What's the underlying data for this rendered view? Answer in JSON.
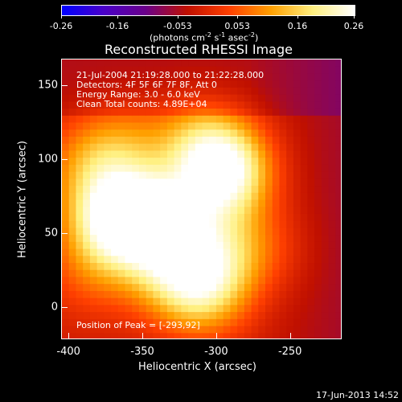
{
  "colorbar": {
    "tick_labels": [
      "-0.26",
      "-0.16",
      "-0.053",
      "0.053",
      "0.16",
      "0.26"
    ],
    "tick_values": [
      -0.26,
      -0.16,
      -0.053,
      0.053,
      0.16,
      0.26
    ],
    "units_text": "(photons cm",
    "units_sup1": "-2",
    "units_mid": " s",
    "units_sup2": "-1",
    "units_end": " asec",
    "units_sup3": "-2",
    "units_close": ")"
  },
  "plot": {
    "title": "Reconstructed RHESSI Image",
    "xlabel": "Heliocentric X (arcsec)",
    "ylabel": "Heliocentric Y (arcsec)",
    "xticks": [
      "-400",
      "-350",
      "-300",
      "-250"
    ],
    "yticks": [
      "0",
      "50",
      "100",
      "150"
    ],
    "annotations": {
      "time_range": "21-Jul-2004 21:19:28.000 to 21:22:28.000",
      "detectors": "Detectors: 4F 5F 6F 7F 8F, Att 0",
      "energy": "Energy Range: 3.0 - 6.0 keV",
      "clean": "Clean     Total counts: 4.89E+04",
      "peak": "Position of Peak = [-293,92]"
    }
  },
  "footer": {
    "date": "17-Jun-2013 14:52"
  },
  "chart_data": {
    "type": "heatmap",
    "title": "Reconstructed RHESSI Image",
    "xlabel": "Heliocentric X (arcsec)",
    "ylabel": "Heliocentric Y (arcsec)",
    "xlim": [
      -405,
      -215
    ],
    "ylim": [
      -22,
      168
    ],
    "colorbar_range": [
      -0.26,
      0.26
    ],
    "colormap": [
      "#0000ff",
      "#4a00c8",
      "#6a008a",
      "#c01000",
      "#ff4000",
      "#ffa000",
      "#fff080",
      "#ffffff"
    ],
    "sources": [
      {
        "x": -294,
        "y": 92,
        "value": 0.26
      },
      {
        "x": -372,
        "y": 60,
        "value": 0.2
      },
      {
        "x": -352,
        "y": 62,
        "value": 0.17
      },
      {
        "x": -330,
        "y": 60,
        "value": 0.13
      },
      {
        "x": -310,
        "y": 13,
        "value": 0.19
      },
      {
        "x": -336,
        "y": 27,
        "value": 0.12
      },
      {
        "x": -385,
        "y": 97,
        "value": 0.11
      },
      {
        "x": -312,
        "y": 112,
        "value": 0.12
      },
      {
        "x": -300,
        "y": 40,
        "value": 0.1
      },
      {
        "x": -270,
        "y": 40,
        "value": 0.06
      },
      {
        "x": -360,
        "y": 110,
        "value": 0.08
      },
      {
        "x": -385,
        "y": 25,
        "value": 0.07
      }
    ],
    "peak": [
      -293,
      92
    ]
  }
}
